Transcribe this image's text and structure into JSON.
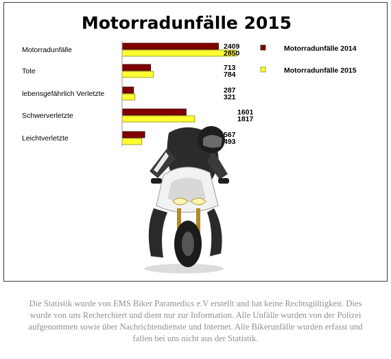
{
  "chart_data": {
    "type": "bar",
    "orientation": "horizontal",
    "title": "Motorradunfälle 2015",
    "categories": [
      "Motorradunfälle",
      "Tote",
      "lebensgefährlich Verletzte",
      "Schwerverletzte",
      "Leichtverletzte"
    ],
    "series": [
      {
        "name": "Motorradunfälle 2014",
        "values": [
          2409,
          713,
          287,
          1601,
          567
        ],
        "color": "#7f0000"
      },
      {
        "name": "Motorradunfälle 2015",
        "values": [
          2850,
          784,
          321,
          1817,
          493
        ],
        "color": "#ffff33"
      }
    ],
    "legend_position": "right",
    "grid": false
  },
  "image": {
    "icon": "motorcycle-rider-icon"
  },
  "caption": "Die Statistik wurde von EMS Biker Paramedics e.V erstellt und hat keine Rechtsgültigkeit. Dies wurde von uns Recherchiert und dient nur zur Information. Alle Unfälle wurden von der Polizei aufgenommen sowie über Nachrichtendienste und Internet. Alle Bikerunfälle wurden erfasst und fallen bei uns nicht aus der Statistik."
}
